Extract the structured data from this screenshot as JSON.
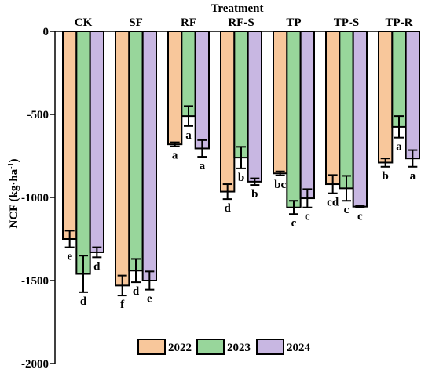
{
  "chart_data": {
    "type": "bar",
    "xlabel": "Treatment",
    "ylabel": "NCF (kg·ha",
    "ylabel_sup": "-1",
    "ylabel_suffix": ")",
    "categories": [
      "CK",
      "SF",
      "RF",
      "RF-S",
      "TP",
      "TP-S",
      "TP-R"
    ],
    "ylim": [
      -2000,
      0
    ],
    "yticks": [
      0,
      -500,
      -1000,
      -1500,
      -2000
    ],
    "ytick_labels": [
      "0",
      "-500",
      "-1000",
      "-1500",
      "-2000"
    ],
    "colors": [
      "#F8C79B",
      "#98D69B",
      "#C8B7E2"
    ],
    "series": [
      {
        "name": "2022",
        "values": [
          -1250,
          -1530,
          -680,
          -965,
          -855,
          -920,
          -790
        ],
        "errors": [
          50,
          60,
          12,
          45,
          12,
          55,
          25
        ],
        "letters": [
          "e",
          "f",
          "a",
          "d",
          "bc",
          "cd",
          "b"
        ]
      },
      {
        "name": "2023",
        "values": [
          -1460,
          -1440,
          -510,
          -760,
          -1060,
          -945,
          -575
        ],
        "errors": [
          110,
          70,
          60,
          65,
          40,
          75,
          65
        ],
        "letters": [
          "d",
          "d",
          "a",
          "b",
          "c",
          "c",
          "a"
        ]
      },
      {
        "name": "2024",
        "values": [
          -1330,
          -1500,
          -705,
          -905,
          -1005,
          -1055,
          -765
        ],
        "errors": [
          30,
          55,
          50,
          20,
          55,
          5,
          50
        ],
        "letters": [
          "d",
          "e",
          "a",
          "b",
          "c",
          "c",
          "a"
        ]
      }
    ],
    "legend_placement": "bottom",
    "grid": false
  }
}
